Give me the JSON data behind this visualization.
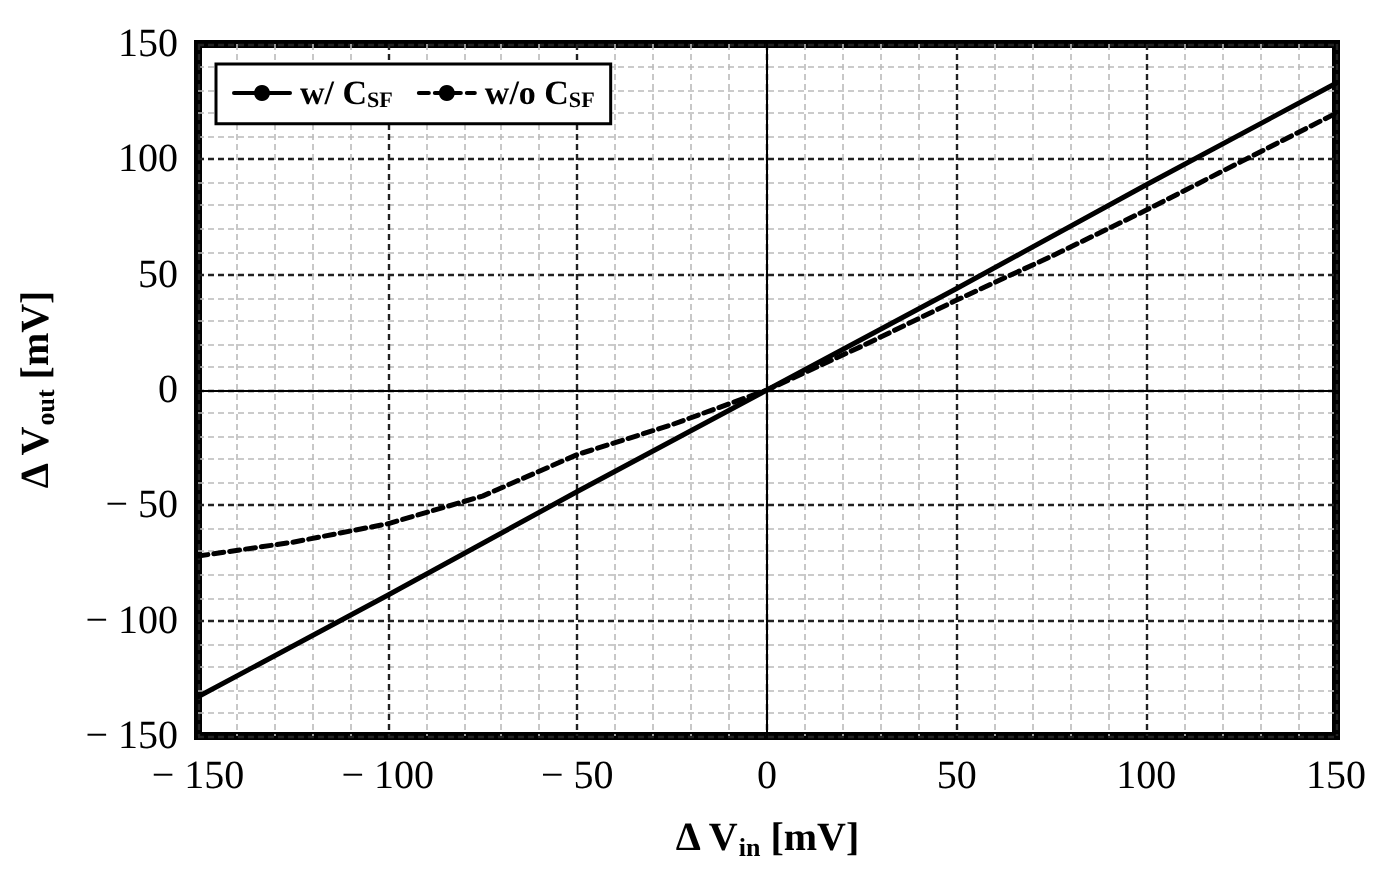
{
  "chart_data": {
    "type": "line",
    "xlabel": "Δ V$_{in}$ [mV]",
    "ylabel": "Δ V$_{out}$ [mV]",
    "xlim": [
      -150,
      150
    ],
    "xticks": [
      -150,
      -100,
      -50,
      0,
      50,
      100,
      150
    ],
    "ylim": [
      -150,
      150
    ],
    "yticks": [
      -150,
      -100,
      -50,
      0,
      50,
      100,
      150
    ],
    "grid": true,
    "legend": "top left",
    "marker": "none",
    "series": [
      {
        "name": "w/ C$_{SF}$",
        "color": "#000000",
        "line_style": "solid",
        "x": [
          -150,
          -100,
          -50,
          0,
          50,
          100,
          150
        ],
        "values": [
          -133,
          -89,
          -44,
          0,
          44,
          89,
          133
        ]
      },
      {
        "name": "w/o C$_{SF}$",
        "color": "#000000",
        "line_style": "dashed",
        "x": [
          -150,
          -125,
          -100,
          -75,
          -50,
          -25,
          0,
          25,
          50,
          75,
          100,
          125,
          150
        ],
        "values": [
          -72,
          -66,
          -58,
          -46,
          -28,
          -15,
          0,
          19,
          39,
          58,
          78,
          99,
          120
        ]
      }
    ]
  }
}
